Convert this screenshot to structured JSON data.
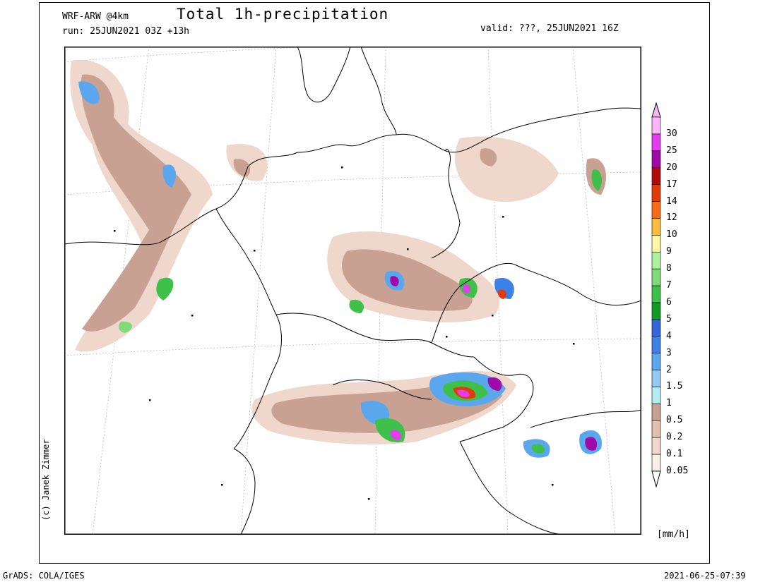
{
  "header": {
    "model": "WRF-ARW @4km",
    "run": "run: 25JUN2021 03Z +13h",
    "title": "Total 1h-precipitation",
    "valid": "valid: ???, 25JUN2021 16Z"
  },
  "credit": "(c) Janek Zimmer",
  "footer": {
    "grads": "GrADS: COLA/IGES",
    "timestamp": "2021-06-25-07:39"
  },
  "legend": {
    "units": "[mm/h]",
    "levels": [
      {
        "label": "0.05",
        "color": "#fbeee4"
      },
      {
        "label": "0.1",
        "color": "#efd7cb"
      },
      {
        "label": "0.2",
        "color": "#e1c0b1"
      },
      {
        "label": "0.5",
        "color": "#c9a193"
      },
      {
        "label": "1",
        "color": "#b4ecf4"
      },
      {
        "label": "1.5",
        "color": "#96caf5"
      },
      {
        "label": "2",
        "color": "#5aa7ee"
      },
      {
        "label": "3",
        "color": "#3c82e6"
      },
      {
        "label": "4",
        "color": "#3366d8"
      },
      {
        "label": "5",
        "color": "#0e9a24"
      },
      {
        "label": "6",
        "color": "#3fc04a"
      },
      {
        "label": "7",
        "color": "#7ddc78"
      },
      {
        "label": "8",
        "color": "#aef29c"
      },
      {
        "label": "9",
        "color": "#fff6a8"
      },
      {
        "label": "10",
        "color": "#fdbd3c"
      },
      {
        "label": "12",
        "color": "#fa6b16"
      },
      {
        "label": "14",
        "color": "#e23a0a"
      },
      {
        "label": "17",
        "color": "#b40a0a"
      },
      {
        "label": "20",
        "color": "#a00aa8"
      },
      {
        "label": "25",
        "color": "#e63cf0"
      },
      {
        "label": "30",
        "color": "#f8b6f6"
      }
    ]
  },
  "map": {
    "region": "Central Europe",
    "field": "total 1h precipitation",
    "colors": {
      "border": "#000000",
      "grid": "#aaaaaa",
      "frame": "#000000"
    }
  }
}
